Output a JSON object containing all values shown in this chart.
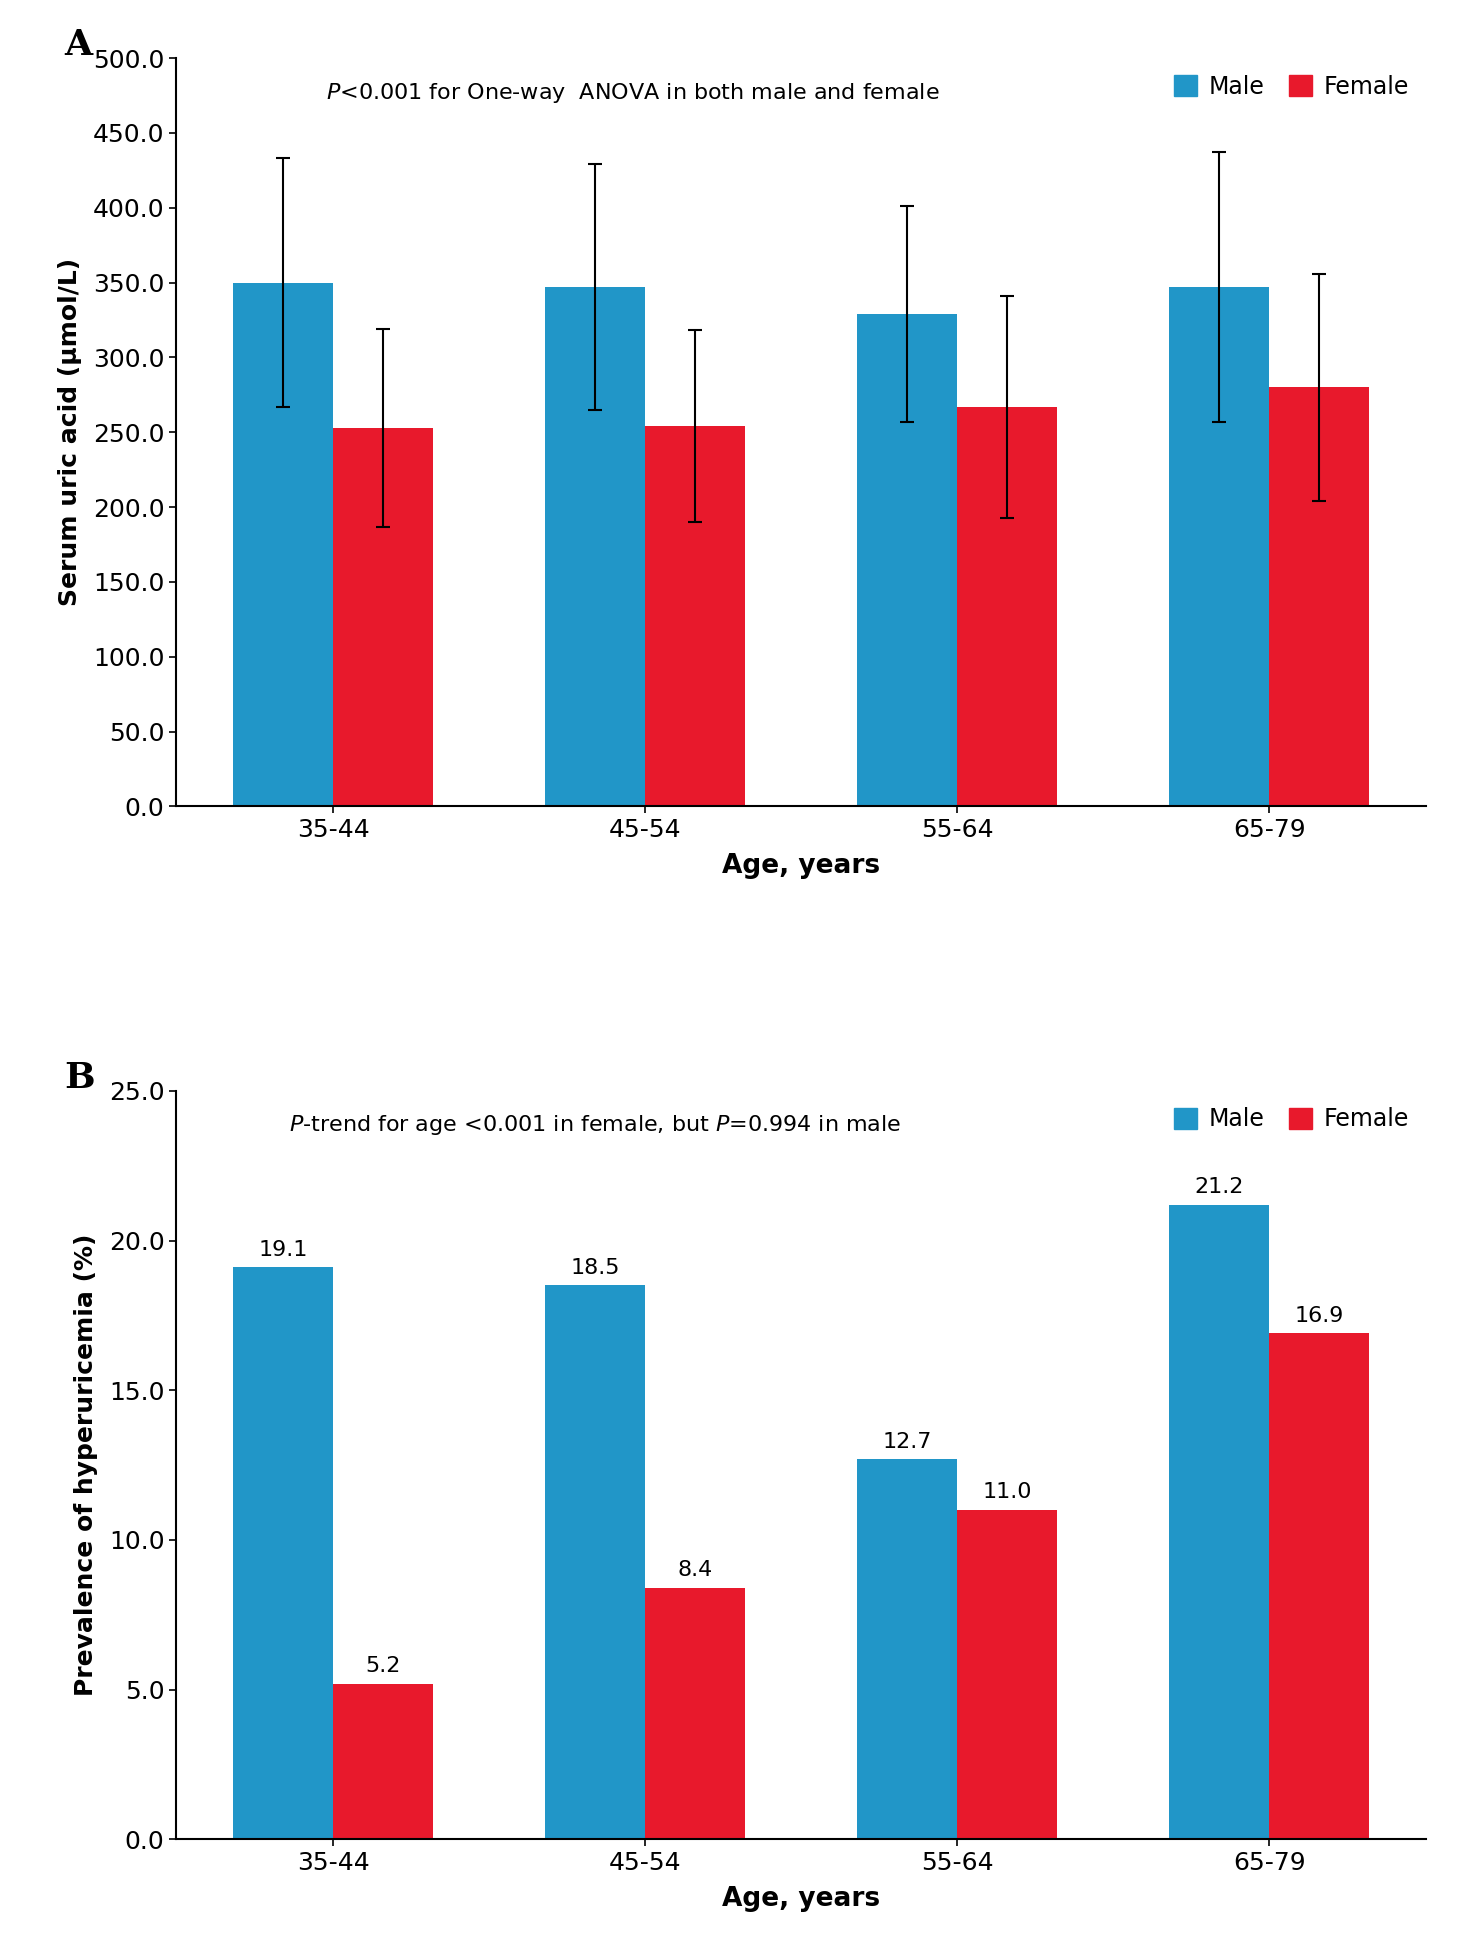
{
  "chart_a": {
    "title": "A",
    "ylabel": "Serum uric acid (μmol/L)",
    "xlabel": "Age, years",
    "categories": [
      "35-44",
      "45-54",
      "55-64",
      "65-79"
    ],
    "male_values": [
      350.0,
      347.0,
      329.0,
      347.0
    ],
    "female_values": [
      253.0,
      254.0,
      267.0,
      280.0
    ],
    "male_errors_upper": [
      83.0,
      82.0,
      72.0,
      90.0
    ],
    "male_errors_lower": [
      83.0,
      82.0,
      72.0,
      90.0
    ],
    "female_errors_upper": [
      66.0,
      64.0,
      74.0,
      76.0
    ],
    "female_errors_lower": [
      66.0,
      64.0,
      74.0,
      76.0
    ],
    "ylim": [
      0,
      500
    ],
    "yticks": [
      0.0,
      50.0,
      100.0,
      150.0,
      200.0,
      250.0,
      300.0,
      350.0,
      400.0,
      450.0,
      500.0
    ]
  },
  "chart_b": {
    "title": "B",
    "ylabel": "Prevalence of hyperuricemia (%)",
    "xlabel": "Age, years",
    "categories": [
      "35-44",
      "45-54",
      "55-64",
      "65-79"
    ],
    "male_values": [
      19.1,
      18.5,
      12.7,
      21.2
    ],
    "female_values": [
      5.2,
      8.4,
      11.0,
      16.9
    ],
    "ylim": [
      0,
      25
    ],
    "yticks": [
      0.0,
      5.0,
      10.0,
      15.0,
      20.0,
      25.0
    ]
  },
  "male_color": "#2196C8",
  "female_color": "#E8192C",
  "bar_width": 0.32,
  "legend_male": "Male",
  "legend_female": "Female",
  "background_color": "#ffffff"
}
